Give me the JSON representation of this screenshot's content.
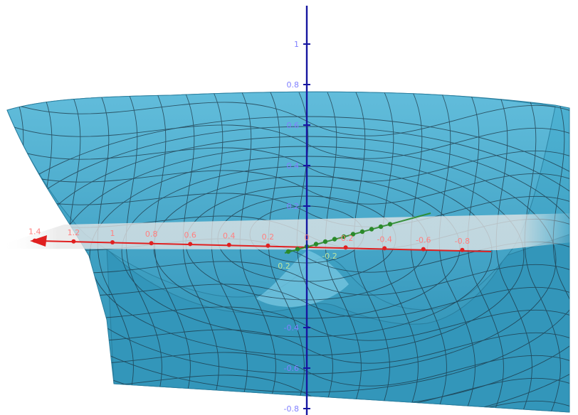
{
  "colors": {
    "surface": "#3fa5c8",
    "surface_dark": "#2b86a8",
    "surface_light": "#6cc2de",
    "mesh": "#1b3240",
    "axis_x": "#e02020",
    "axis_y": "#2a8a2a",
    "axis_z": "#1616a0",
    "label_x": "#ff8080",
    "label_y": "#bfe6a0",
    "label_z": "#8080ff",
    "plane": "#d9d9d9"
  },
  "axes": {
    "x_labels": [
      {
        "text": "1.4",
        "value": 1.4
      },
      {
        "text": "1.2",
        "value": 1.2
      },
      {
        "text": "1",
        "value": 1.0
      },
      {
        "text": "0.8",
        "value": 0.8
      },
      {
        "text": "0.6",
        "value": 0.6
      },
      {
        "text": "0.4",
        "value": 0.4
      },
      {
        "text": "0.2",
        "value": 0.2
      },
      {
        "text": "0",
        "value": 0.0
      },
      {
        "text": "-0.2",
        "value": -0.2
      },
      {
        "text": "-0.4",
        "value": -0.4
      },
      {
        "text": "-0.6",
        "value": -0.6
      },
      {
        "text": "-0.8",
        "value": -0.8
      }
    ],
    "y_labels": [
      {
        "text": "0.2",
        "value": 0.2
      },
      {
        "text": "-0.2",
        "value": -0.2
      }
    ],
    "z_labels": [
      {
        "text": "1",
        "value": 1.0
      },
      {
        "text": "0.8",
        "value": 0.8
      },
      {
        "text": "0.6",
        "value": 0.6
      },
      {
        "text": "0.4",
        "value": 0.4
      },
      {
        "text": "0.2",
        "value": 0.2
      },
      {
        "text": "-0.4",
        "value": -0.4
      },
      {
        "text": "-0.6",
        "value": -0.6
      },
      {
        "text": "-0.8",
        "value": -0.8
      }
    ]
  }
}
